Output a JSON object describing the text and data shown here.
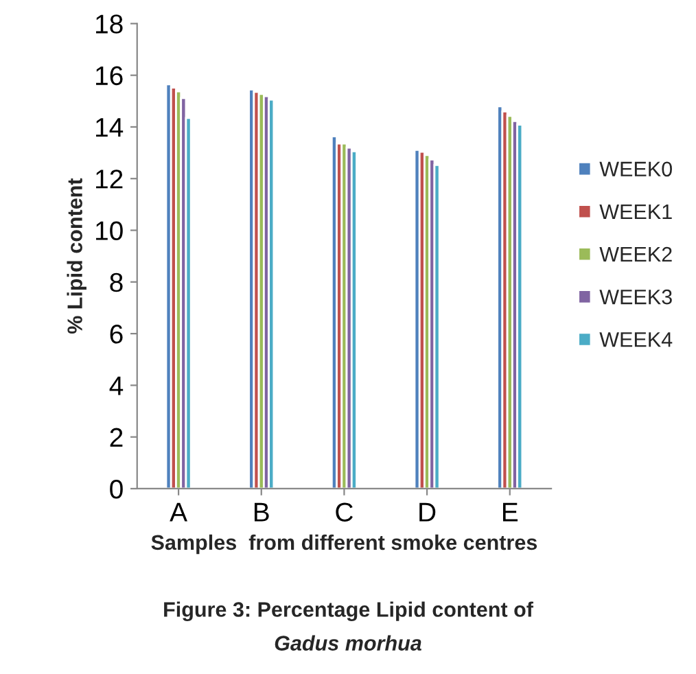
{
  "chart_data": {
    "type": "bar",
    "title": "Figure 3: Percentage Lipid content of",
    "subtitle": "Gadus morhua",
    "xlabel": "Samples  from different smoke centres",
    "ylabel": "% Lipid content",
    "categories": [
      "A",
      "B",
      "C",
      "D",
      "E"
    ],
    "series": [
      {
        "name": "WEEK0",
        "color": "#4f81bd",
        "values": [
          15.65,
          15.45,
          13.64,
          13.11,
          14.8
        ]
      },
      {
        "name": "WEEK1",
        "color": "#c0504d",
        "values": [
          15.52,
          15.36,
          13.36,
          13.04,
          14.6
        ]
      },
      {
        "name": "WEEK2",
        "color": "#9bbb59",
        "values": [
          15.38,
          15.28,
          13.36,
          12.91,
          14.43
        ]
      },
      {
        "name": "WEEK3",
        "color": "#8064a2",
        "values": [
          15.12,
          15.19,
          13.2,
          12.74,
          14.23
        ]
      },
      {
        "name": "WEEK4",
        "color": "#4bacc6",
        "values": [
          14.35,
          15.06,
          13.06,
          12.53,
          14.09
        ]
      }
    ],
    "ylim": [
      0,
      18
    ],
    "yticks": [
      0,
      2,
      4,
      6,
      8,
      10,
      12,
      14,
      16,
      18
    ],
    "grid": false,
    "legend": "right"
  }
}
